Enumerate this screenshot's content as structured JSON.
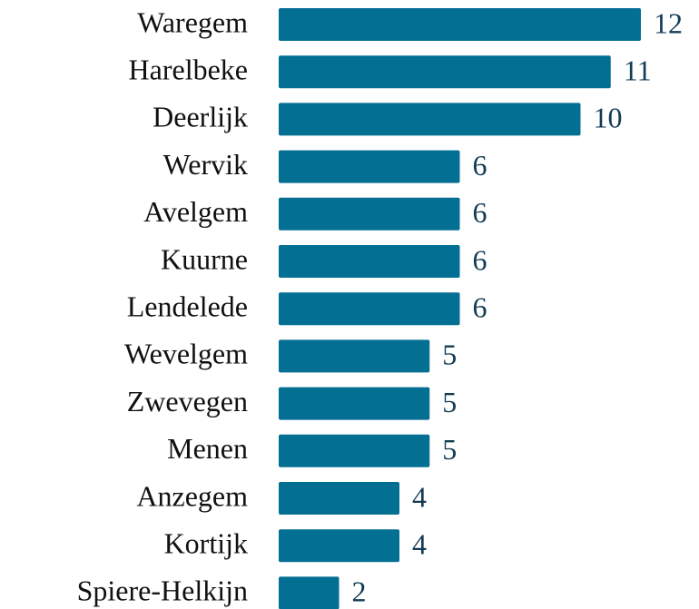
{
  "chart_data": {
    "type": "bar",
    "orientation": "horizontal",
    "categories": [
      "Waregem",
      "Harelbeke",
      "Deerlijk",
      "Wervik",
      "Avelgem",
      "Kuurne",
      "Lendelede",
      "Wevelgem",
      "Zwevegen",
      "Menen",
      "Anzegem",
      "Kortijk",
      "Spiere-Helkijn"
    ],
    "values": [
      12,
      11,
      10,
      6,
      6,
      6,
      6,
      5,
      5,
      5,
      4,
      4,
      2
    ],
    "color": "#036f93"
  }
}
